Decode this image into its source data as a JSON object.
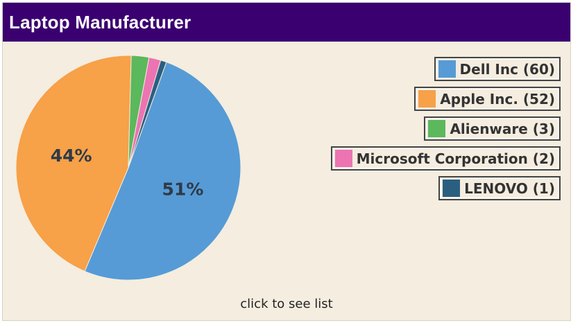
{
  "header": {
    "title": "Laptop Manufacturer"
  },
  "chart_data": {
    "type": "pie",
    "title": "Laptop Manufacturer",
    "categories": [
      "Dell Inc",
      "Apple Inc.",
      "Alienware",
      "Microsoft Corporation",
      "LENOVO"
    ],
    "values": [
      60,
      52,
      3,
      2,
      1
    ],
    "colors": [
      "#569bd6",
      "#f7a148",
      "#5cb85c",
      "#ec74b2",
      "#2b5f80"
    ],
    "percent_labels": [
      "51%",
      "44%",
      "",
      "",
      ""
    ],
    "legend": {
      "placement": "right",
      "items": [
        "Dell Inc (60)",
        "Apple Inc. (52)",
        "Alienware (3)",
        "Microsoft Corporation (2)",
        "LENOVO (1)"
      ]
    }
  },
  "footer": {
    "link_label": "click to see list"
  }
}
